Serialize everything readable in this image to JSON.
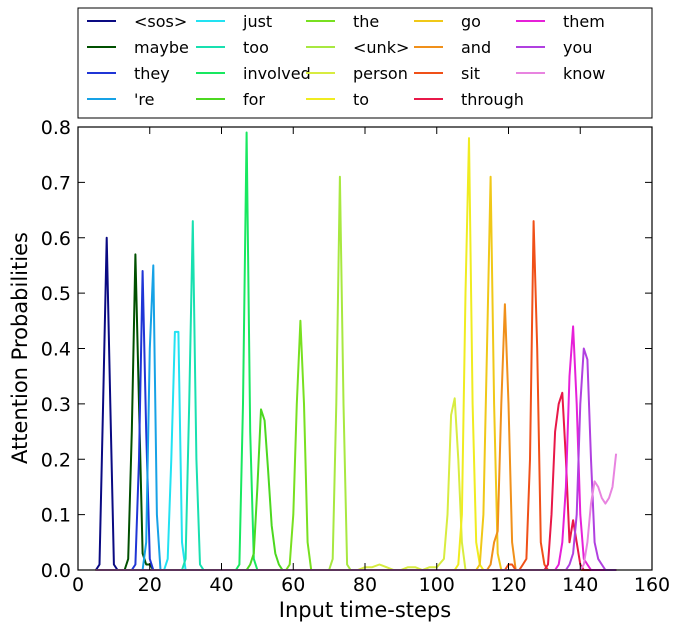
{
  "chart_data": {
    "type": "line",
    "xlabel": "Input time-steps",
    "ylabel": "Attention Probabilities",
    "xlim": [
      0,
      160
    ],
    "ylim": [
      0,
      0.8
    ],
    "xticks": [
      "0",
      "20",
      "40",
      "60",
      "80",
      "100",
      "120",
      "140",
      "160"
    ],
    "yticks": [
      "0.0",
      "0.1",
      "0.2",
      "0.3",
      "0.4",
      "0.5",
      "0.6",
      "0.7",
      "0.8"
    ],
    "grid": false,
    "legend_position": "top",
    "series": [
      {
        "name": "<sos>",
        "color": "#0a0a82",
        "x": [
          5,
          6,
          7,
          8,
          9,
          10,
          11,
          12
        ],
        "y": [
          0,
          0.01,
          0.3,
          0.6,
          0.3,
          0.01,
          0,
          0
        ]
      },
      {
        "name": "maybe",
        "color": "#005000",
        "x": [
          13,
          14,
          15,
          16,
          17,
          18,
          19,
          20,
          21
        ],
        "y": [
          0,
          0.02,
          0.25,
          0.57,
          0.3,
          0.03,
          0.01,
          0.01,
          0
        ]
      },
      {
        "name": "they",
        "color": "#1f35d6",
        "x": [
          15,
          16,
          17,
          18,
          19,
          20,
          21,
          22
        ],
        "y": [
          0,
          0.01,
          0.2,
          0.54,
          0.25,
          0.02,
          0,
          0
        ]
      },
      {
        "name": "'re",
        "color": "#16a2e6",
        "x": [
          18,
          19,
          20,
          21,
          22,
          23
        ],
        "y": [
          0,
          0.05,
          0.4,
          0.55,
          0.1,
          0
        ]
      },
      {
        "name": "just",
        "color": "#22e2f2",
        "x": [
          24,
          25,
          26,
          27,
          28,
          29,
          30
        ],
        "y": [
          0,
          0.02,
          0.2,
          0.43,
          0.43,
          0.05,
          0
        ]
      },
      {
        "name": "too",
        "color": "#18e0b0",
        "x": [
          29,
          30,
          31,
          32,
          33,
          34,
          35
        ],
        "y": [
          0,
          0.02,
          0.3,
          0.63,
          0.2,
          0.01,
          0
        ]
      },
      {
        "name": "involved",
        "color": "#18e860",
        "x": [
          44,
          45,
          46,
          47,
          48,
          49,
          50,
          51
        ],
        "y": [
          0,
          0.01,
          0.3,
          0.79,
          0.25,
          0.02,
          0,
          0
        ]
      },
      {
        "name": "for",
        "color": "#4cd820",
        "x": [
          47,
          48,
          49,
          50,
          51,
          52,
          53,
          54,
          55,
          56,
          57
        ],
        "y": [
          0,
          0.01,
          0.03,
          0.15,
          0.29,
          0.27,
          0.18,
          0.08,
          0.03,
          0.01,
          0
        ]
      },
      {
        "name": "the",
        "color": "#78e020",
        "x": [
          58,
          59,
          60,
          61,
          62,
          63,
          64,
          65,
          66
        ],
        "y": [
          0,
          0.01,
          0.1,
          0.3,
          0.45,
          0.3,
          0.05,
          0,
          0
        ]
      },
      {
        "name": "<unk>",
        "color": "#a8e840",
        "x": [
          70,
          71,
          72,
          73,
          74,
          75,
          76
        ],
        "y": [
          0,
          0.02,
          0.3,
          0.71,
          0.3,
          0.01,
          0
        ]
      },
      {
        "name": "person",
        "color": "#d8ec40",
        "x": [
          78,
          80,
          82,
          84,
          86,
          88,
          90,
          92,
          94,
          96,
          98,
          100,
          102,
          103,
          104,
          105,
          106,
          107,
          108
        ],
        "y": [
          0,
          0.005,
          0.005,
          0.01,
          0.005,
          0,
          0,
          0.005,
          0.005,
          0,
          0.005,
          0.005,
          0.02,
          0.1,
          0.28,
          0.31,
          0.2,
          0.05,
          0
        ]
      },
      {
        "name": "to",
        "color": "#f0ec20",
        "x": [
          105,
          106,
          107,
          108,
          109,
          110,
          111,
          112,
          113
        ],
        "y": [
          0,
          0.01,
          0.1,
          0.5,
          0.78,
          0.3,
          0.05,
          0.01,
          0
        ]
      },
      {
        "name": "go",
        "color": "#f0c818",
        "x": [
          111,
          112,
          113,
          114,
          115,
          116,
          117,
          118,
          119
        ],
        "y": [
          0,
          0.01,
          0.1,
          0.4,
          0.71,
          0.3,
          0.03,
          0,
          0
        ]
      },
      {
        "name": "and",
        "color": "#f0901a",
        "x": [
          114,
          115,
          116,
          117,
          118,
          119,
          120,
          121,
          122
        ],
        "y": [
          0,
          0.01,
          0.05,
          0.07,
          0.3,
          0.48,
          0.3,
          0.05,
          0
        ]
      },
      {
        "name": "sit",
        "color": "#f05018",
        "x": [
          119,
          120,
          121,
          122,
          123,
          124,
          125,
          126,
          127,
          128,
          129,
          130,
          131
        ],
        "y": [
          0,
          0.01,
          0.01,
          0,
          0,
          0.01,
          0.02,
          0.2,
          0.63,
          0.4,
          0.05,
          0.01,
          0
        ]
      },
      {
        "name": "through",
        "color": "#e81848",
        "x": [
          130,
          131,
          132,
          133,
          134,
          135,
          136,
          137,
          138,
          139,
          140,
          141,
          142
        ],
        "y": [
          0,
          0.01,
          0.1,
          0.25,
          0.3,
          0.32,
          0.2,
          0.05,
          0.09,
          0.05,
          0.01,
          0,
          0
        ]
      },
      {
        "name": "them",
        "color": "#e620d8",
        "x": [
          133,
          134,
          135,
          136,
          137,
          138,
          139,
          140,
          141,
          142,
          143,
          144
        ],
        "y": [
          0,
          0.01,
          0.05,
          0.15,
          0.35,
          0.44,
          0.3,
          0.1,
          0.02,
          0.01,
          0,
          0
        ]
      },
      {
        "name": "you",
        "color": "#b040e0",
        "x": [
          136,
          137,
          138,
          139,
          140,
          141,
          142,
          143,
          144,
          145,
          146,
          147
        ],
        "y": [
          0,
          0.01,
          0.03,
          0.1,
          0.3,
          0.4,
          0.38,
          0.2,
          0.05,
          0.02,
          0.01,
          0
        ]
      },
      {
        "name": "know",
        "color": "#e884e0",
        "x": [
          140,
          141,
          142,
          143,
          144,
          145,
          146,
          147,
          148,
          149,
          150
        ],
        "y": [
          0,
          0.01,
          0.05,
          0.12,
          0.16,
          0.15,
          0.13,
          0.12,
          0.13,
          0.15,
          0.21
        ]
      }
    ]
  }
}
